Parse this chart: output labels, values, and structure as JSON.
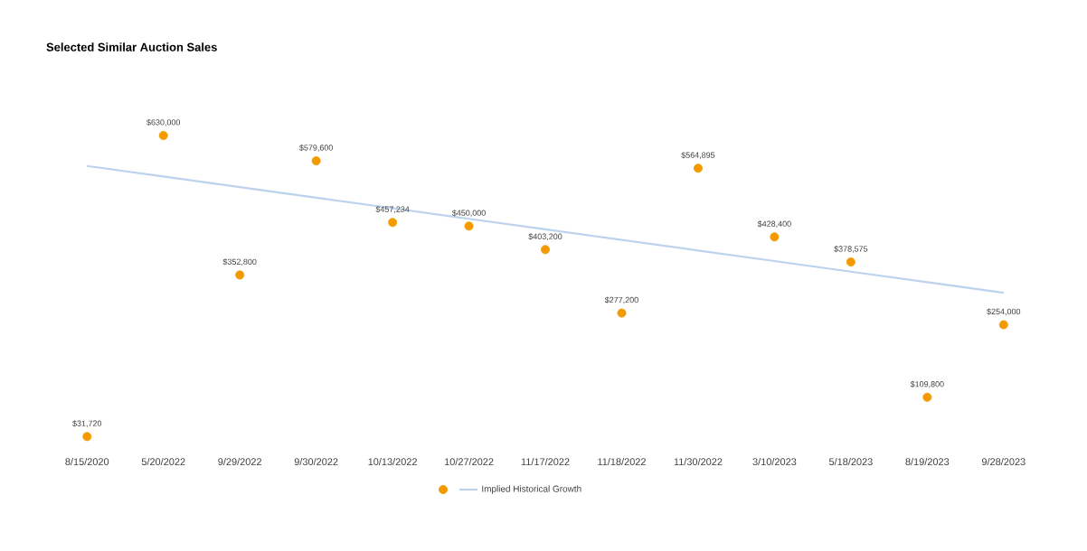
{
  "chart_data": {
    "type": "scatter",
    "title": "Selected Similar Auction Sales",
    "categories": [
      "8/15/2020",
      "5/20/2022",
      "9/29/2022",
      "9/30/2022",
      "10/13/2022",
      "10/27/2022",
      "11/17/2022",
      "11/18/2022",
      "11/30/2022",
      "3/10/2023",
      "5/18/2023",
      "8/19/2023",
      "9/28/2023"
    ],
    "series": [
      {
        "color": "#f39a00",
        "marker": "circle",
        "values": [
          31720,
          630000,
          352800,
          579600,
          457234,
          450000,
          403200,
          277200,
          564895,
          428400,
          378575,
          109800,
          254000
        ],
        "value_labels": [
          "$31,720",
          "$630,000",
          "$352,800",
          "$579,600",
          "$457,234",
          "$450,000",
          "$403,200",
          "$277,200",
          "$564,895",
          "$428,400",
          "$378,575",
          "$109,800",
          "$254,000"
        ]
      },
      {
        "type": "line",
        "name": "Implied Historical Growth",
        "color": "#bcd2ee",
        "marker": "none",
        "values": [
          569500,
          548500,
          527500,
          506500,
          485500,
          464500,
          443500,
          422500,
          401500,
          380500,
          359500,
          338500,
          317500
        ]
      }
    ],
    "legend": "bottom",
    "tick_labels": "x",
    "grid": false
  }
}
